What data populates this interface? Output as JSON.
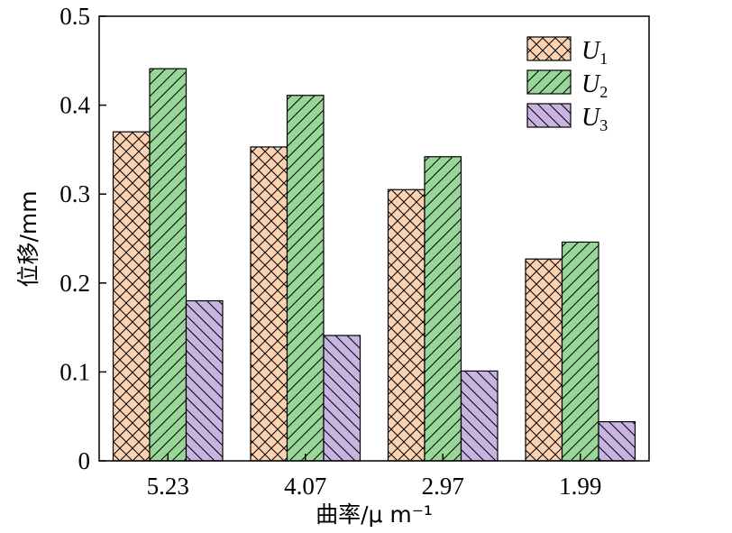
{
  "chart_data": {
    "type": "bar",
    "title": "",
    "xlabel": "曲率/μ m⁻¹",
    "ylabel": "位移/mm",
    "categories": [
      "5.23",
      "4.07",
      "2.97",
      "1.99"
    ],
    "ylim": [
      0,
      0.5
    ],
    "yticks": [
      "0",
      "0.1",
      "0.2",
      "0.3",
      "0.4",
      "0.5"
    ],
    "grid": false,
    "legend_position": "top-right",
    "series": [
      {
        "name": "U",
        "subscript": "1",
        "values": [
          0.37,
          0.353,
          0.305,
          0.227
        ],
        "color": "#fcd3b1",
        "hatch": "crosshatch"
      },
      {
        "name": "U",
        "subscript": "2",
        "values": [
          0.441,
          0.411,
          0.342,
          0.246
        ],
        "color": "#99d699",
        "hatch": "forward-diagonal"
      },
      {
        "name": "U",
        "subscript": "3",
        "values": [
          0.18,
          0.141,
          0.101,
          0.044
        ],
        "color": "#c8b4e0",
        "hatch": "back-diagonal"
      }
    ]
  }
}
